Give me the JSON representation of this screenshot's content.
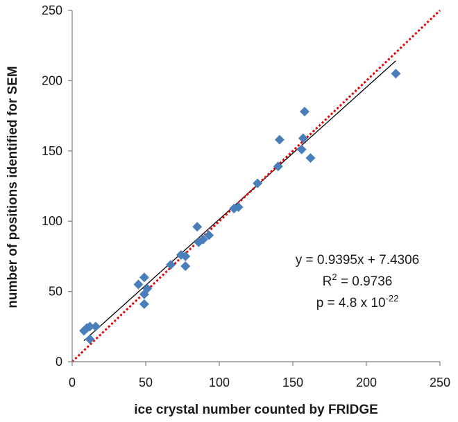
{
  "chart_data": {
    "type": "scatter",
    "xlabel": "ice crystal number counted by FRIDGE",
    "ylabel": "number of positions identified for SEM",
    "xlim": [
      0,
      250
    ],
    "ylim": [
      0,
      250
    ],
    "xticks": [
      0,
      50,
      100,
      150,
      200,
      250
    ],
    "yticks": [
      0,
      50,
      100,
      150,
      200,
      250
    ],
    "grid": false,
    "legend": "none",
    "series": [
      {
        "marker": "diamond",
        "color": "#4a7ebb",
        "points": [
          [
            8,
            22
          ],
          [
            10,
            24
          ],
          [
            12,
            25
          ],
          [
            12,
            16
          ],
          [
            16,
            25
          ],
          [
            45,
            55
          ],
          [
            49,
            60
          ],
          [
            49,
            48
          ],
          [
            49,
            41
          ],
          [
            51,
            52
          ],
          [
            67,
            69
          ],
          [
            74,
            76
          ],
          [
            77,
            75
          ],
          [
            77,
            68
          ],
          [
            85,
            96
          ],
          [
            86,
            85
          ],
          [
            89,
            87
          ],
          [
            93,
            90
          ],
          [
            110,
            109
          ],
          [
            113,
            110
          ],
          [
            126,
            127
          ],
          [
            140,
            139
          ],
          [
            141,
            158
          ],
          [
            156,
            151
          ],
          [
            157,
            159
          ],
          [
            158,
            178
          ],
          [
            162,
            145
          ],
          [
            220,
            205
          ]
        ]
      }
    ],
    "fit_line": {
      "slope": 0.9395,
      "intercept": 7.4306,
      "x_range": [
        8,
        220
      ],
      "color": "#000000"
    },
    "identity_line": {
      "x_range": [
        0,
        250
      ],
      "color": "#e00000",
      "style": "dotted"
    },
    "annotations": {
      "equation": "y = 0.9395x + 7.4306",
      "r2_prefix": "R",
      "r2_sup": "2",
      "r2_value": " = 0.9736",
      "p_prefix": "p = 4.8 x 10",
      "p_sup": "-22"
    }
  }
}
